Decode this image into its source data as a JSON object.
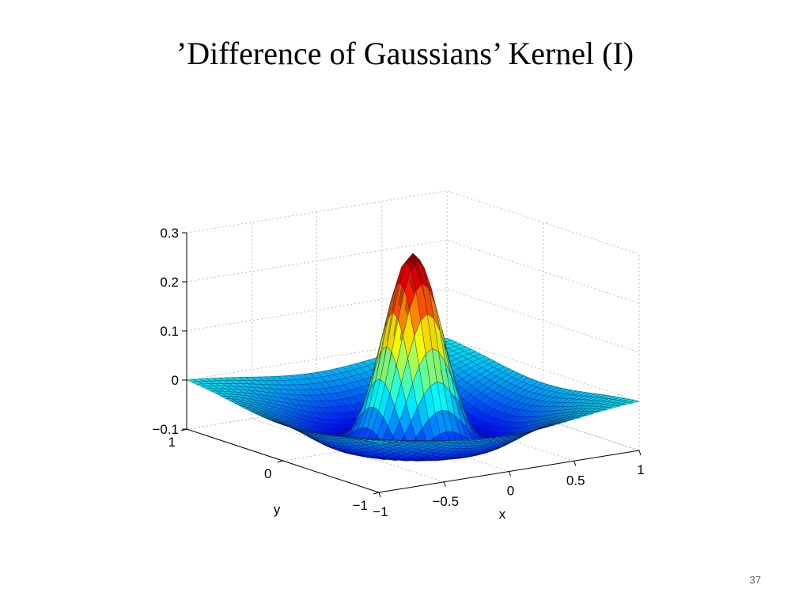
{
  "slide": {
    "title": "’Difference of Gaussians’ Kernel (I)",
    "page_number": "37"
  },
  "chart_data": {
    "type": "surface",
    "title": "",
    "function": "difference of Gaussians",
    "xlabel": "x",
    "ylabel": "y",
    "zlabel": "",
    "xlim": [
      -1,
      1
    ],
    "ylim": [
      -1,
      1
    ],
    "zlim": [
      -0.1,
      0.3
    ],
    "x_ticks": [
      "−1",
      "−0.5",
      "0",
      "0.5",
      "1"
    ],
    "y_ticks": [
      "−1",
      "0",
      "1"
    ],
    "z_ticks": [
      "−0.1",
      "0",
      "0.1",
      "0.2",
      "0.3"
    ],
    "peak": {
      "x": 0,
      "y": 0,
      "z": 0.28
    },
    "corner_z": 0,
    "trough_z": -0.1,
    "grid": true,
    "colormap": "jet",
    "colors": [
      "#00008f",
      "#0000ff",
      "#00ffff",
      "#ffff00",
      "#ff0000",
      "#800000"
    ]
  }
}
